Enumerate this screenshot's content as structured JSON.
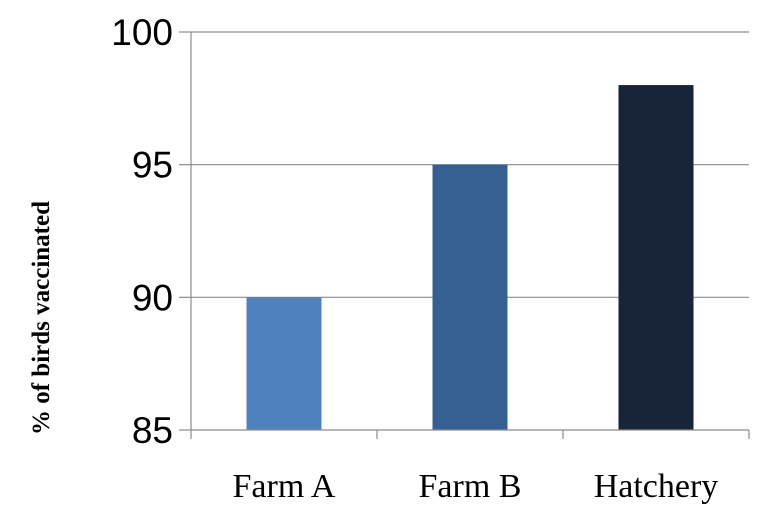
{
  "chart_data": {
    "type": "bar",
    "title": "",
    "xlabel": "",
    "ylabel": "% of birds vaccinated",
    "categories": [
      "Farm A",
      "Farm B",
      "Hatchery"
    ],
    "values": [
      90,
      95,
      98
    ],
    "colors": [
      "#4f81bd",
      "#376092",
      "#17243a"
    ],
    "ylim": [
      85,
      100
    ],
    "yticks": [
      85,
      90,
      95,
      100
    ],
    "grid": true,
    "legend": "none"
  }
}
